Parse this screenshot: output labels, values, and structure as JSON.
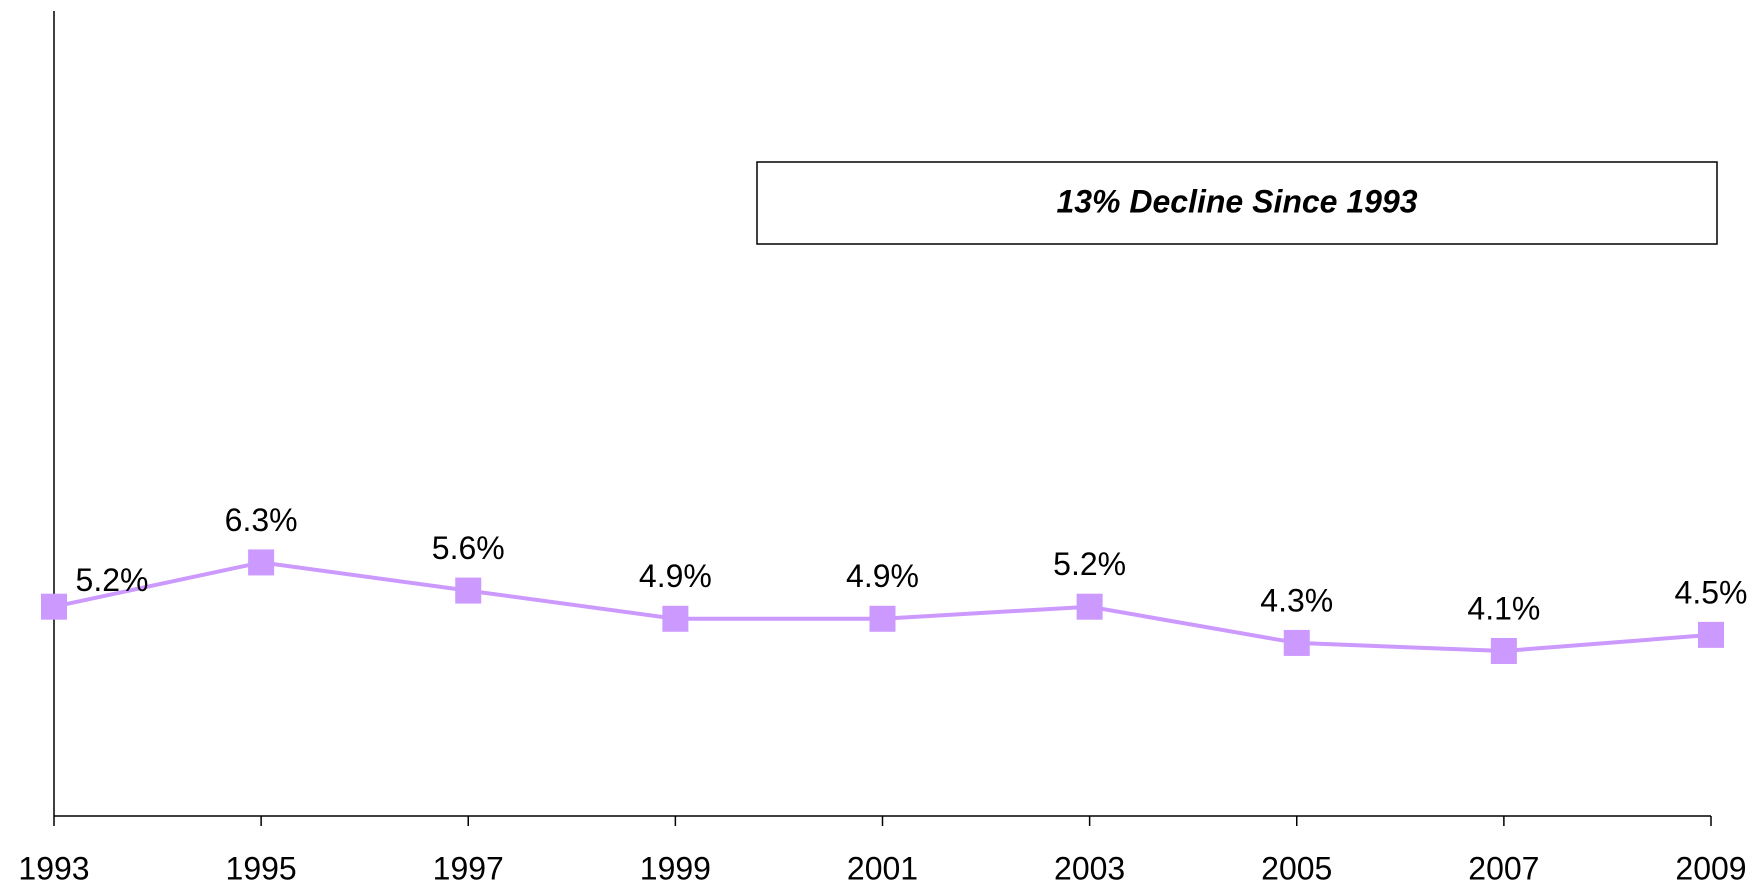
{
  "chart_data": {
    "type": "line",
    "categories": [
      "1993",
      "1995",
      "1997",
      "1999",
      "2001",
      "2003",
      "2005",
      "2007",
      "2009"
    ],
    "series": [
      {
        "name": null,
        "color": "#cc99ff",
        "values": [
          5.2,
          6.3,
          5.6,
          4.9,
          4.9,
          5.2,
          4.3,
          4.1,
          4.5
        ],
        "value_labels": [
          "5.2%",
          "6.3%",
          "5.6%",
          "4.9%",
          "4.9%",
          "5.2%",
          "4.3%",
          "4.1%",
          "4.5%"
        ]
      }
    ],
    "ylim": [
      0,
      20
    ],
    "annotation": "13% Decline Since 1993"
  }
}
